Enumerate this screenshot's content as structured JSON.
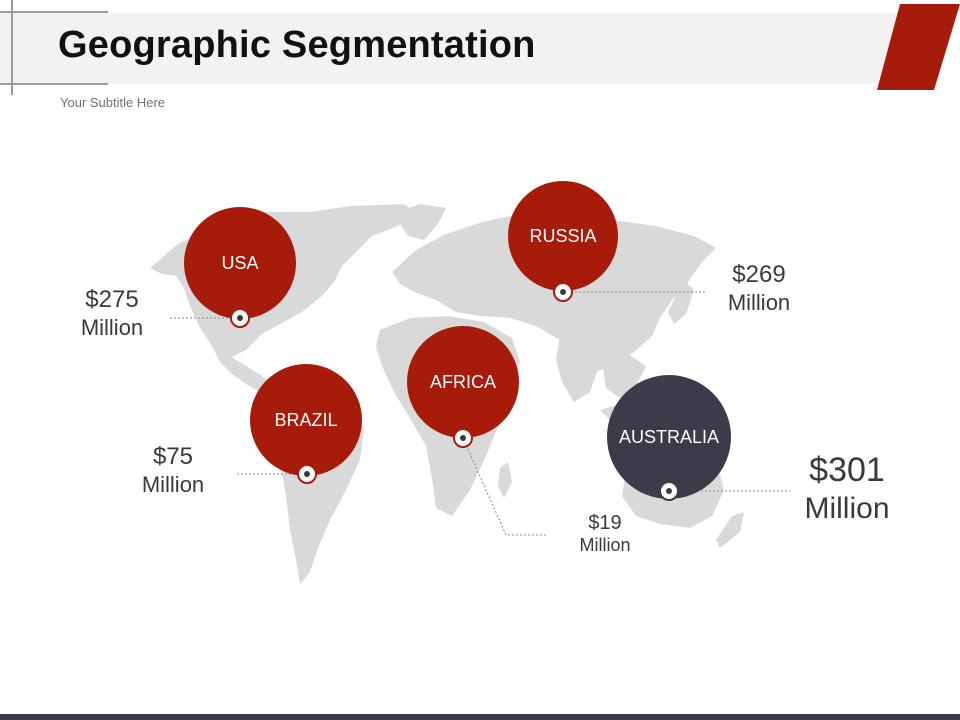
{
  "title": "Geographic Segmentation",
  "subtitle": "Your Subtitle Here",
  "colors": {
    "primary": "#a61b0a",
    "secondary": "#3d3b4a",
    "map": "#d9d9d9"
  },
  "regions": [
    {
      "id": "usa",
      "name": "USA",
      "amount": "$275",
      "unit": "Million",
      "color": "#a61b0a"
    },
    {
      "id": "russia",
      "name": "RUSSIA",
      "amount": "$269",
      "unit": "Million",
      "color": "#a61b0a"
    },
    {
      "id": "brazil",
      "name": "BRAZIL",
      "amount": "$75",
      "unit": "Million",
      "color": "#a61b0a"
    },
    {
      "id": "africa",
      "name": "AFRICA",
      "amount": "$19",
      "unit": "Million",
      "color": "#a61b0a"
    },
    {
      "id": "australia",
      "name": "AUSTRALIA",
      "amount": "$301",
      "unit": "Million",
      "color": "#3d3b4a"
    }
  ]
}
